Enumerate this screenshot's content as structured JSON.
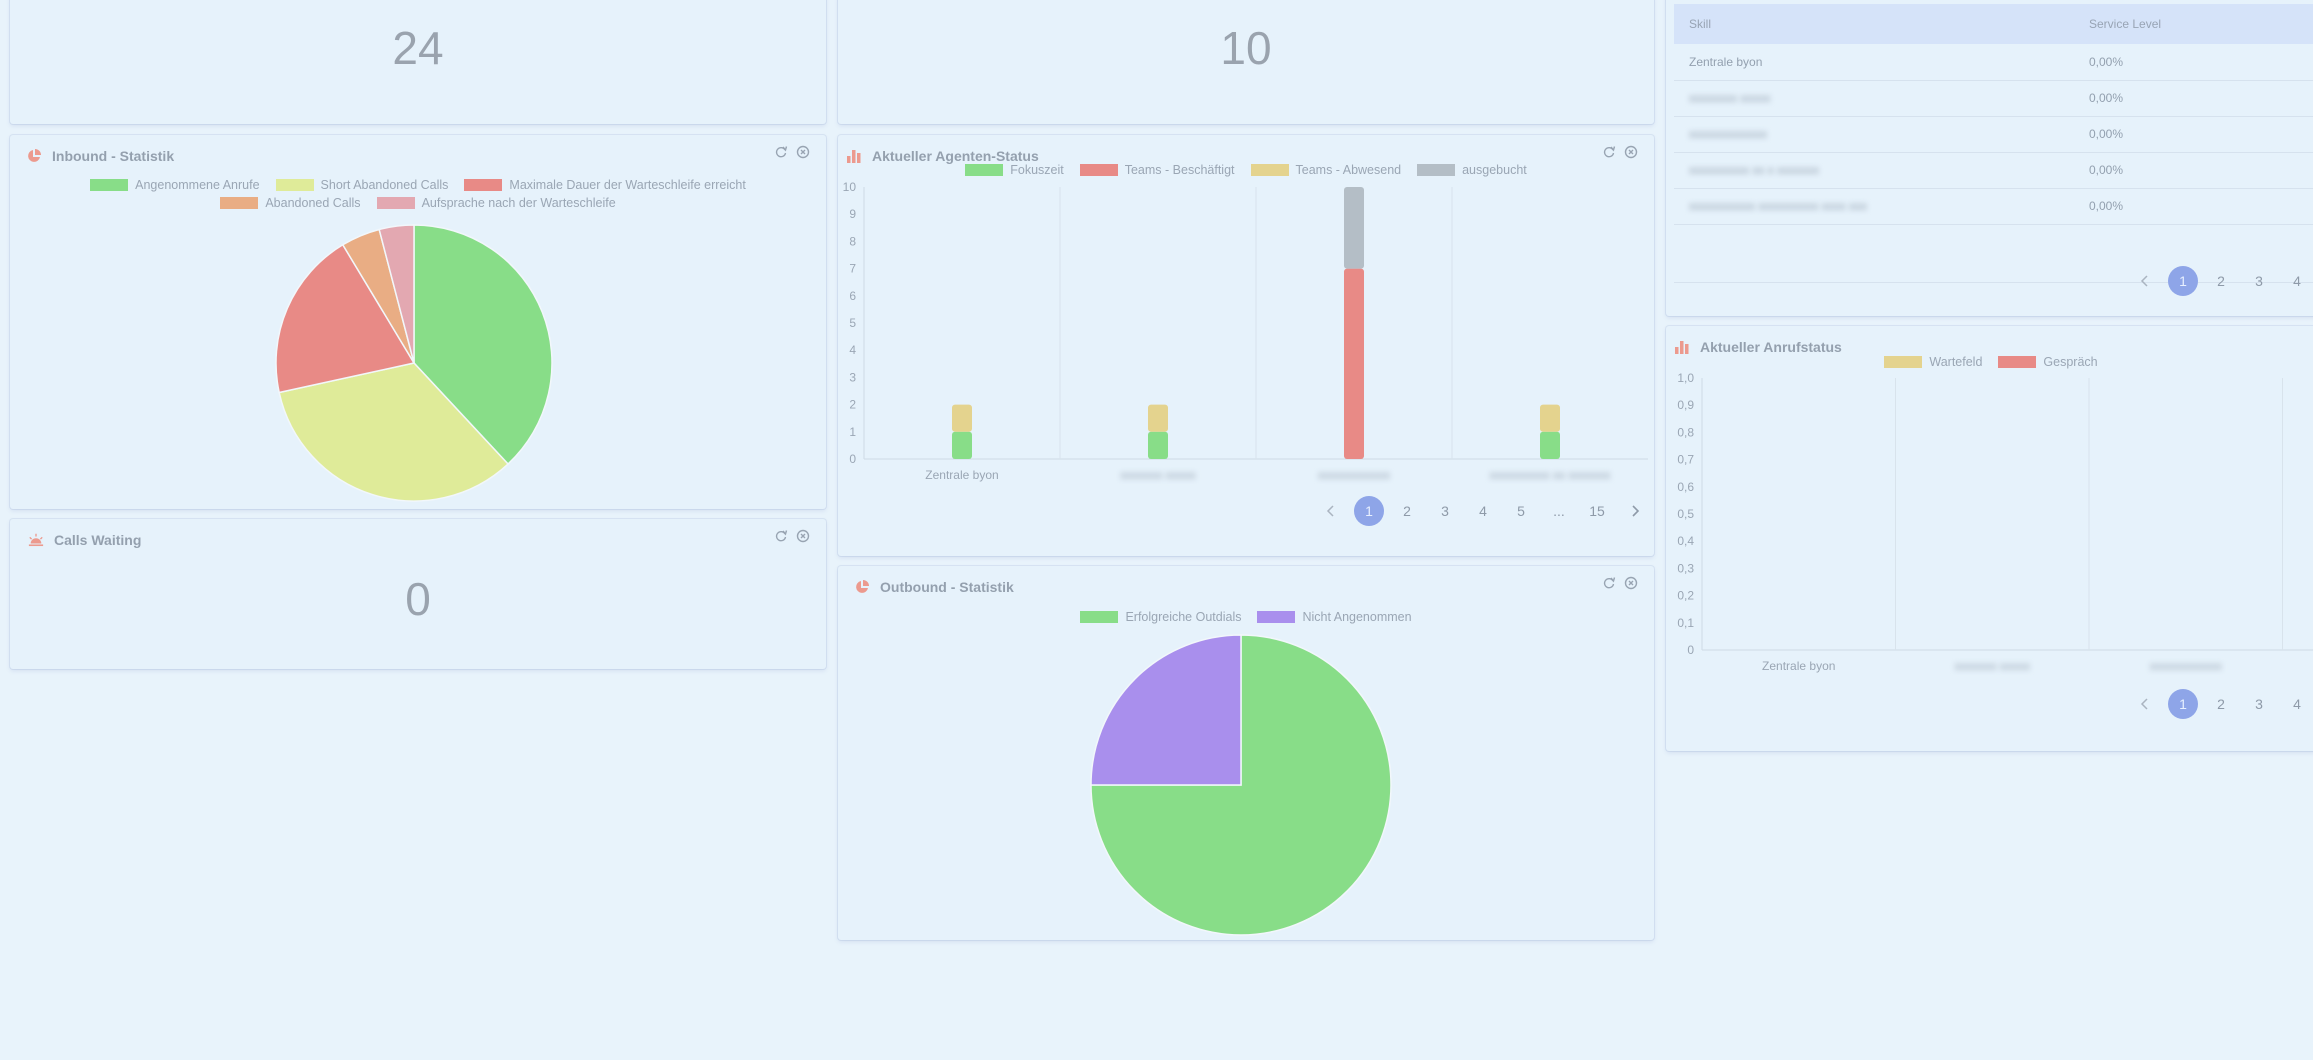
{
  "colors": {
    "green": "#88dd88",
    "yellow": "#dfeb99",
    "red": "#e88a86",
    "orange": "#e9ad84",
    "pink": "#e3a8b1",
    "gold": "#e4d38e",
    "grey": "#b4bec6",
    "purple": "#a98fed",
    "icon": "#ec9a8e",
    "pager_active": "#8ea5e8"
  },
  "cards": {
    "top_left": {
      "value": "24"
    },
    "top_mid": {
      "value": "10"
    },
    "inbound": {
      "title": "Inbound - Statistik",
      "title_icon": "pie-chart-icon",
      "legend": [
        "Angenommene Anrufe",
        "Short Abandoned Calls",
        "Maximale Dauer der Warteschleife erreicht",
        "Abandoned Calls",
        "Aufsprache nach der Warteschleife"
      ]
    },
    "agents": {
      "title": "Aktueller Agenten-Status",
      "title_icon": "bar-chart-icon",
      "legend": [
        "Fokuszeit",
        "Teams - Beschäftigt",
        "Teams - Abwesend",
        "ausgebucht"
      ],
      "pager": [
        "1",
        "2",
        "3",
        "4",
        "5",
        "...",
        "15"
      ]
    },
    "waiting": {
      "title": "Calls Waiting",
      "title_icon": "sunrise-icon",
      "value": "0"
    },
    "outbound": {
      "title": "Outbound - Statistik",
      "title_icon": "pie-chart-icon",
      "legend": [
        "Erfolgreiche Outdials",
        "Nicht Angenommen"
      ]
    },
    "service_level": {
      "headers": [
        "Skill",
        "Service Level"
      ],
      "rows": [
        {
          "skill": "Zentrale byon",
          "level": "0,00%"
        },
        {
          "skill": "xxxxxxxx xxxxx",
          "level": "0,00%"
        },
        {
          "skill": "xxxxxxxxxxxxx",
          "level": "0,00%"
        },
        {
          "skill": "xxxxxxxxxx xx x xxxxxxx",
          "level": "0,00%"
        },
        {
          "skill": "xxxxxxxxxxx xxxxxxxxxx xxxx xxx",
          "level": "0,00%"
        }
      ],
      "pager": [
        "1",
        "2",
        "3",
        "4"
      ]
    },
    "call_status": {
      "title": "Aktueller Anrufstatus",
      "title_icon": "bar-chart-icon",
      "legend": [
        "Wartefeld",
        "Gespräch"
      ],
      "pager": [
        "1",
        "2",
        "3",
        "4"
      ]
    }
  },
  "chart_data": [
    {
      "type": "pie",
      "name": "Inbound - Statistik",
      "labels": [
        "Angenommene Anrufe",
        "Short Abandoned Calls",
        "Maximale Dauer der Warteschleife erreicht",
        "Abandoned Calls",
        "Aufsprache nach der Warteschleife"
      ],
      "values": [
        37.5,
        33,
        19.5,
        4.5,
        4
      ]
    },
    {
      "type": "bar",
      "stacked": true,
      "name": "Aktueller Agenten-Status",
      "categories": [
        "Zentrale byon",
        "xxxxxxx xxxxx",
        "xxxxxxxxxxxx",
        "xxxxxxxxxx xx xxxxxxx"
      ],
      "series": [
        {
          "name": "Fokuszeit",
          "values": [
            1,
            1,
            0,
            1
          ]
        },
        {
          "name": "Teams - Beschäftigt",
          "values": [
            0,
            0,
            7,
            0
          ]
        },
        {
          "name": "Teams - Abwesend",
          "values": [
            1,
            1,
            0,
            1
          ]
        },
        {
          "name": "ausgebucht",
          "values": [
            0,
            0,
            3,
            0
          ]
        }
      ],
      "ylim": [
        0,
        10
      ],
      "yticks": [
        0,
        1,
        2,
        3,
        4,
        5,
        6,
        7,
        8,
        9,
        10
      ]
    },
    {
      "type": "pie",
      "name": "Outbound - Statistik",
      "labels": [
        "Erfolgreiche Outdials",
        "Nicht Angenommen"
      ],
      "values": [
        75,
        25
      ]
    },
    {
      "type": "bar",
      "stacked": true,
      "name": "Aktueller Anrufstatus",
      "categories": [
        "Zentrale byon",
        "xxxxxxx xxxxx",
        "xxxxxxxxxxxx"
      ],
      "series": [
        {
          "name": "Wartefeld",
          "values": [
            0,
            0,
            0
          ]
        },
        {
          "name": "Gespräch",
          "values": [
            0,
            0,
            0
          ]
        }
      ],
      "ylim": [
        0,
        1
      ],
      "yticks": [
        "0",
        "0,1",
        "0,2",
        "0,3",
        "0,4",
        "0,5",
        "0,6",
        "0,7",
        "0,8",
        "0,9",
        "1,0"
      ]
    }
  ]
}
